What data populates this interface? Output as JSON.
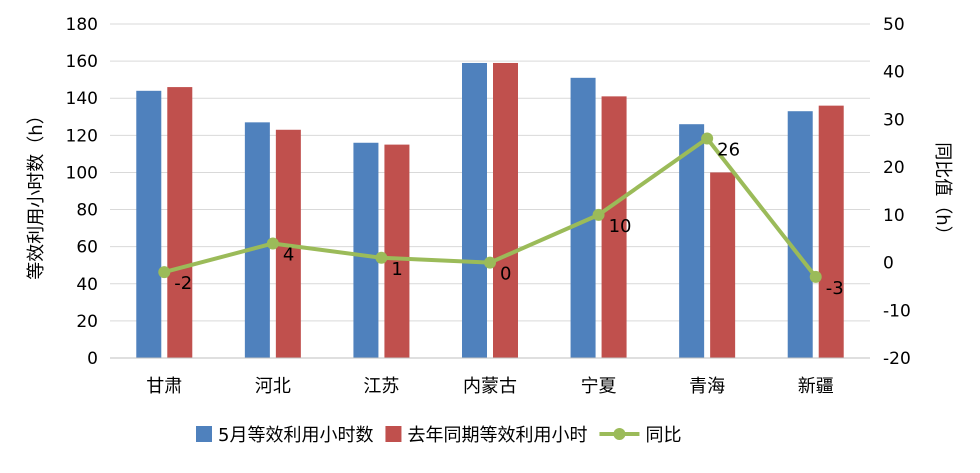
{
  "chart_data": {
    "type": "bar",
    "categories": [
      "甘肃",
      "河北",
      "江苏",
      "内蒙古",
      "宁夏",
      "青海",
      "新疆"
    ],
    "series": [
      {
        "name": "5月等效利用小时数",
        "type": "bar",
        "axis": "left",
        "color": "#4F81BD",
        "values": [
          144,
          127,
          116,
          159,
          151,
          126,
          133
        ]
      },
      {
        "name": "去年同期等效利用小时",
        "type": "bar",
        "axis": "left",
        "color": "#C0504D",
        "values": [
          146,
          123,
          115,
          159,
          141,
          100,
          136
        ]
      },
      {
        "name": "同比",
        "type": "line",
        "axis": "right",
        "color": "#9BBB59",
        "values": [
          -2,
          4,
          1,
          0,
          10,
          26,
          -3
        ]
      }
    ],
    "ylabel": "等效利用小时数（h）",
    "y2label": "同比值（h）",
    "ylim": [
      0,
      180
    ],
    "y2lim": [
      -20,
      50
    ],
    "yticks": [
      0,
      20,
      40,
      60,
      80,
      100,
      120,
      140,
      160,
      180
    ],
    "y2ticks": [
      -20,
      -10,
      0,
      10,
      20,
      30,
      40,
      50
    ],
    "grid": true,
    "legend_position": "bottom"
  }
}
